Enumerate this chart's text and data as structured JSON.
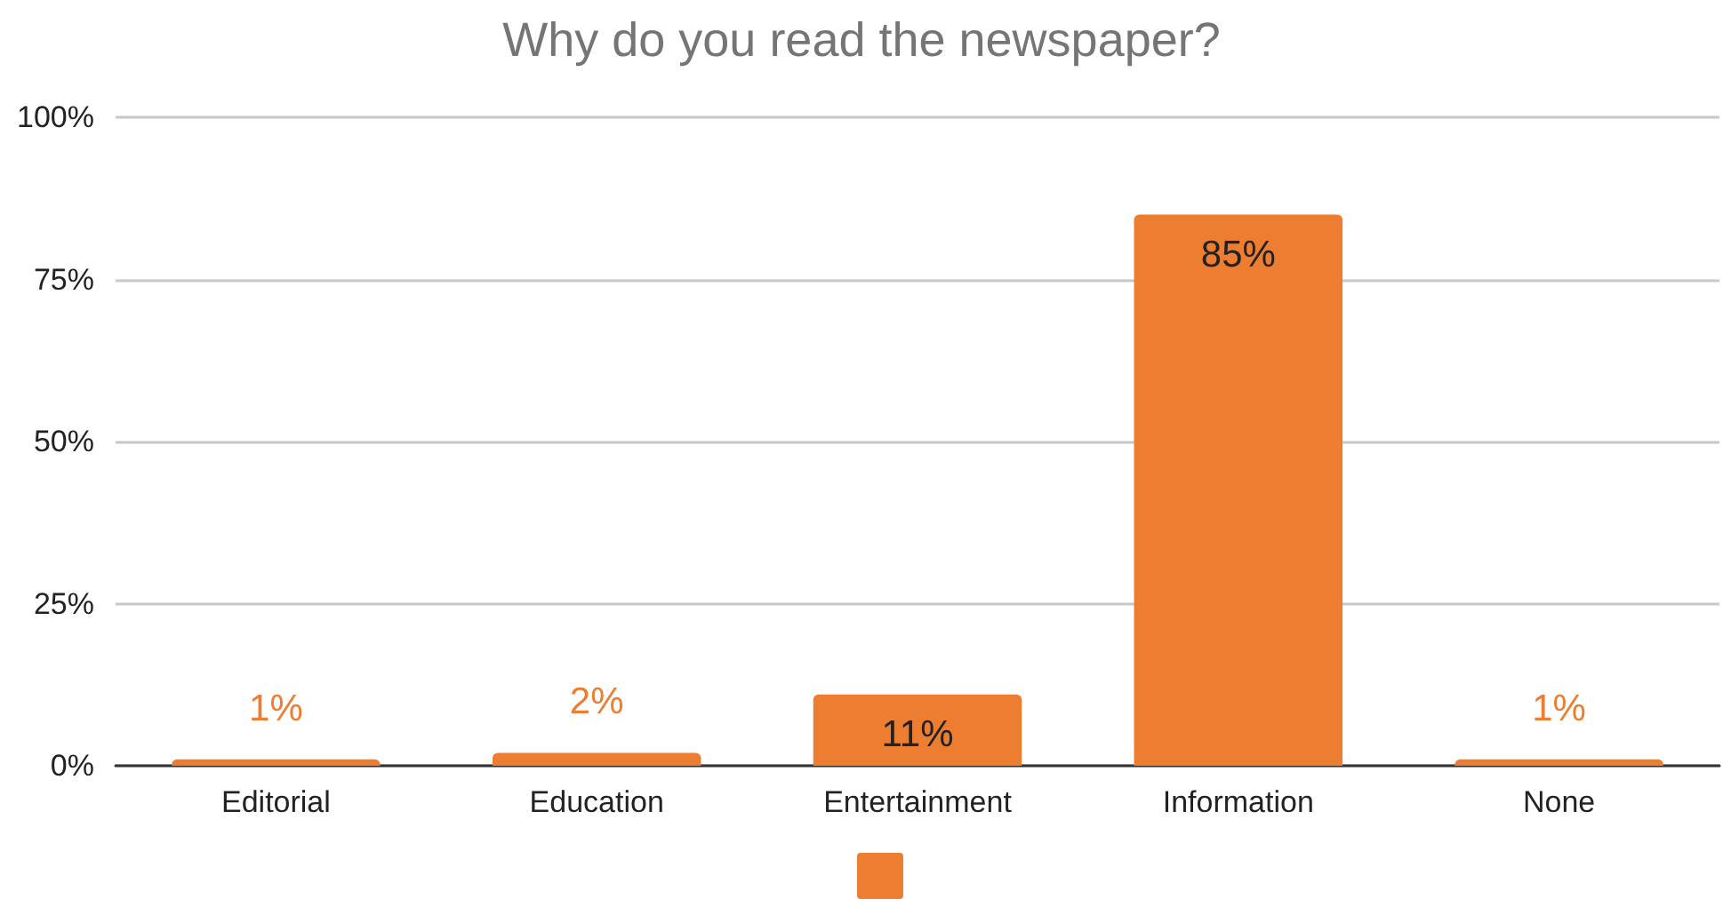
{
  "chart_data": {
    "type": "bar",
    "title": "Why do you read the newspaper?",
    "categories": [
      "Editorial",
      "Education",
      "Entertainment",
      "Information",
      "None"
    ],
    "values": [
      1,
      2,
      11,
      85,
      1
    ],
    "color": "#ed7d31",
    "ylim": [
      0,
      100
    ],
    "yticks": [
      {
        "value": 0,
        "label": "0%"
      },
      {
        "value": 25,
        "label": "25%"
      },
      {
        "value": 50,
        "label": "50%"
      },
      {
        "value": 75,
        "label": "75%"
      },
      {
        "value": 100,
        "label": "100%"
      }
    ],
    "value_labels": [
      "1%",
      "2%",
      "11%",
      "85%",
      "1%"
    ],
    "grid": "y"
  }
}
